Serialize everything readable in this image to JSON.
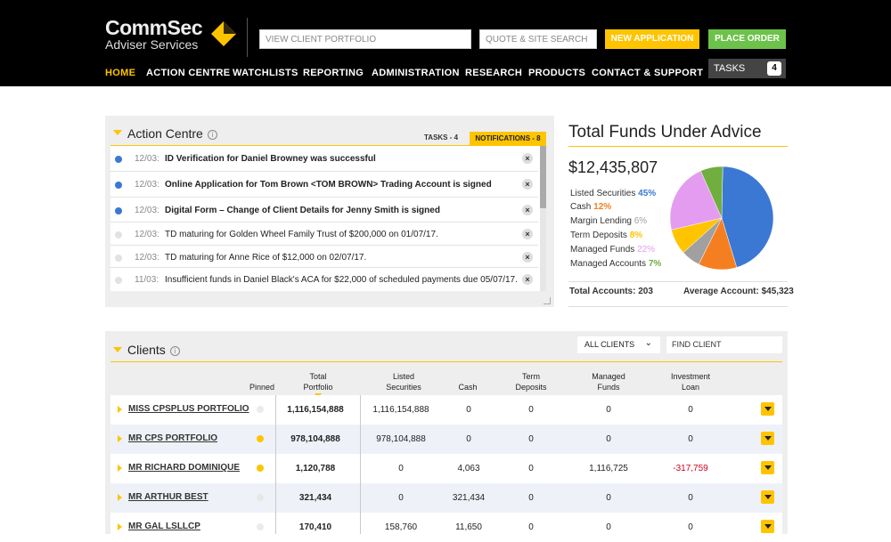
{
  "header": {
    "brand_line1": "CommSec",
    "brand_line2": "Adviser Services",
    "client_search_placeholder": "VIEW CLIENT PORTFOLIO",
    "quote_search_placeholder": "QUOTE & SITE SEARCH",
    "new_application": "NEW APPLICATION",
    "place_order": "PLACE ORDER",
    "tasks_label": "TASKS",
    "tasks_count": "4",
    "nav": [
      "HOME",
      "ACTION CENTRE",
      "WATCHLISTS",
      "REPORTING",
      "ADMINISTRATION",
      "RESEARCH",
      "PRODUCTS",
      "CONTACT & SUPPORT"
    ]
  },
  "action_centre": {
    "title": "Action Centre",
    "tab_tasks": "TASKS - 4",
    "tab_notifications": "NOTIFICATIONS - 8",
    "items": [
      {
        "date": "12/03:",
        "text": "ID Verification for Daniel Browney was successful",
        "unread": true
      },
      {
        "date": "12/03:",
        "text": "Online Application for Tom Brown <TOM BROWN> Trading Account is signed",
        "unread": true
      },
      {
        "date": "12/03:",
        "text": "Digital Form – Change of Client Details for Jenny Smith is signed",
        "unread": true
      },
      {
        "date": "12/03:",
        "text": "TD maturing for Golden Wheel Family Trust of $200,000 on 01/07/17.",
        "unread": false
      },
      {
        "date": "12/03:",
        "text": "TD maturing for Anne Rice of $12,000 on 02/07/17.",
        "unread": false
      },
      {
        "date": "11/03:",
        "text": "Insufficient funds in Daniel Black's ACA for $22,000 of scheduled payments due 05/07/17.",
        "unread": false
      }
    ]
  },
  "funds": {
    "title": "Total Funds Under Advice",
    "total": "$12,435,807",
    "legend": [
      {
        "label": "Listed Securities",
        "pct": "45%",
        "color": "#3a78d4"
      },
      {
        "label": "Cash",
        "pct": "12%",
        "color": "#f57f20"
      },
      {
        "label": "Margin Lending",
        "pct": "6%",
        "color": "#a0a0a0"
      },
      {
        "label": "Term Deposits",
        "pct": "8%",
        "color": "#ffc400"
      },
      {
        "label": "Managed Funds",
        "pct": "22%",
        "color": "#e49cf0"
      },
      {
        "label": "Managed Accounts",
        "pct": "7%",
        "color": "#6fae3f"
      }
    ],
    "total_accounts": "Total Accounts: 203",
    "average_account": "Average Account: $45,323"
  },
  "clients": {
    "title": "Clients",
    "filter_value": "ALL CLIENTS",
    "find_placeholder": "FIND CLIENT",
    "columns": {
      "pinned": "Pinned",
      "total1": "Total",
      "total2": "Portfolio",
      "listed1": "Listed",
      "listed2": "Securities",
      "cash": "Cash",
      "term1": "Term",
      "term2": "Deposits",
      "managed1": "Managed",
      "managed2": "Funds",
      "invest1": "Investment",
      "invest2": "Loan"
    },
    "rows": [
      {
        "name": "MISS CPSPLUS PORTFOLIO",
        "pinned": false,
        "total": "1,116,154,888",
        "listed": "1,116,154,888",
        "cash": "0",
        "term": "0",
        "managed": "0",
        "loan": "0",
        "loan_negative": false
      },
      {
        "name": "MR CPS PORTFOLIO",
        "pinned": true,
        "total": "978,104,888",
        "listed": "978,104,888",
        "cash": "0",
        "term": "0",
        "managed": "0",
        "loan": "0",
        "loan_negative": false
      },
      {
        "name": "MR RICHARD DOMINIQUE",
        "pinned": true,
        "total": "1,120,788",
        "listed": "0",
        "cash": "4,063",
        "term": "0",
        "managed": "1,116,725",
        "loan": "-317,759",
        "loan_negative": true
      },
      {
        "name": "MR ARTHUR BEST",
        "pinned": false,
        "total": "321,434",
        "listed": "0",
        "cash": "321,434",
        "term": "0",
        "managed": "0",
        "loan": "0",
        "loan_negative": false
      },
      {
        "name": "MR GAL LSLLCP",
        "pinned": false,
        "total": "170,410",
        "listed": "158,760",
        "cash": "11,650",
        "term": "0",
        "managed": "0",
        "loan": "0",
        "loan_negative": false
      }
    ]
  },
  "colors": {
    "accent": "#ffc400",
    "green": "#6cc24a",
    "header_bg": "#000000"
  }
}
